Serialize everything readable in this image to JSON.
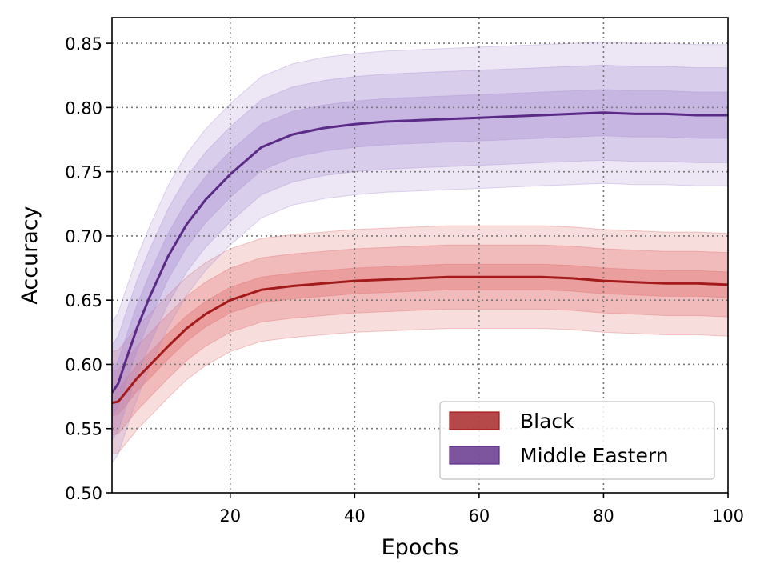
{
  "chart_data": {
    "type": "line",
    "title": "",
    "xlabel": "Epochs",
    "ylabel": "Accuracy",
    "xlim": [
      1,
      100
    ],
    "ylim": [
      0.5,
      0.87
    ],
    "x_ticks": [
      20,
      40,
      60,
      80,
      100
    ],
    "y_ticks": [
      0.5,
      0.55,
      0.6,
      0.65,
      0.7,
      0.75,
      0.8,
      0.85
    ],
    "grid": true,
    "legend_position": "bottom-right",
    "series": [
      {
        "name": "Black",
        "color": "#a31a1a",
        "band_color": "#e06666",
        "band_levels": [
          0.01,
          0.025,
          0.04
        ],
        "x": [
          1,
          2,
          3,
          5,
          7,
          10,
          13,
          16,
          20,
          25,
          30,
          35,
          40,
          45,
          50,
          55,
          60,
          65,
          70,
          75,
          80,
          85,
          90,
          95,
          100
        ],
        "y": [
          0.57,
          0.571,
          0.577,
          0.589,
          0.599,
          0.614,
          0.628,
          0.639,
          0.65,
          0.658,
          0.661,
          0.663,
          0.665,
          0.666,
          0.667,
          0.668,
          0.668,
          0.668,
          0.668,
          0.667,
          0.665,
          0.664,
          0.663,
          0.663,
          0.662
        ]
      },
      {
        "name": "Middle Eastern",
        "color": "#5b2a86",
        "band_color": "#a78bd0",
        "band_levels": [
          0.018,
          0.037,
          0.055
        ],
        "x": [
          1,
          2,
          3,
          5,
          7,
          10,
          13,
          16,
          20,
          25,
          30,
          35,
          40,
          45,
          50,
          55,
          60,
          65,
          70,
          75,
          80,
          85,
          90,
          95,
          100
        ],
        "y": [
          0.578,
          0.585,
          0.6,
          0.628,
          0.652,
          0.684,
          0.709,
          0.728,
          0.748,
          0.769,
          0.779,
          0.784,
          0.787,
          0.789,
          0.79,
          0.791,
          0.792,
          0.793,
          0.794,
          0.795,
          0.796,
          0.795,
          0.795,
          0.794,
          0.794
        ]
      }
    ]
  }
}
